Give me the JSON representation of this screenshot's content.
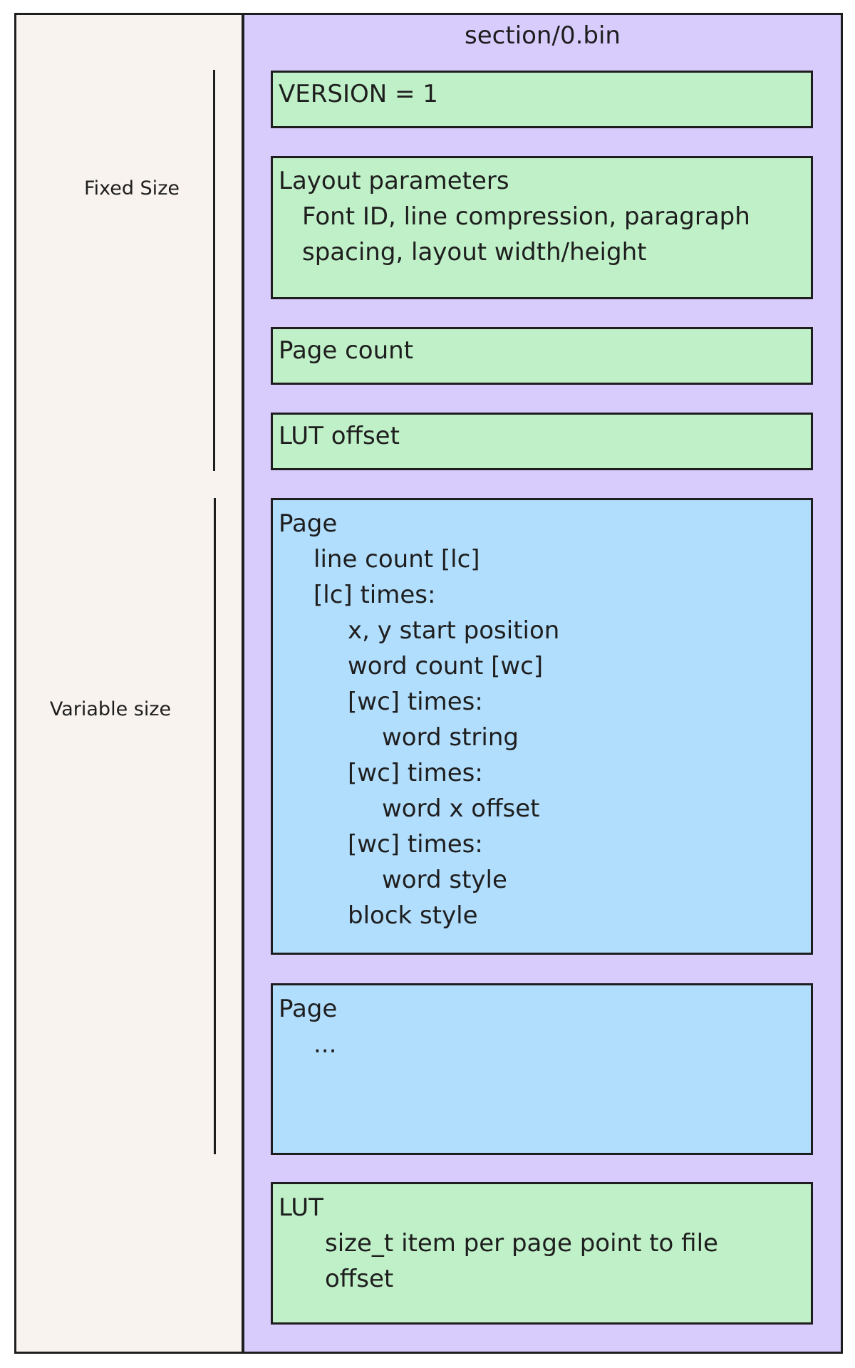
{
  "title": "section/0.bin",
  "side_labels": {
    "fixed": "Fixed Size",
    "variable": "Variable size"
  },
  "blocks": {
    "version": {
      "lines": [
        "VERSION = 1"
      ]
    },
    "layout": {
      "lines": [
        "Layout parameters",
        "Font ID, line compression, paragraph",
        "spacing, layout width/height"
      ]
    },
    "page_count": {
      "lines": [
        "Page count"
      ]
    },
    "lut_offset": {
      "lines": [
        "LUT offset"
      ]
    },
    "page": {
      "lines": [
        "Page",
        "line count [lc]",
        "[lc] times:",
        "x, y start position",
        "word count [wc]",
        "[wc] times:",
        "word string",
        "[wc] times:",
        "word x offset",
        "[wc] times:",
        "word style",
        "block style"
      ]
    },
    "page2": {
      "lines": [
        "Page",
        "..."
      ]
    },
    "lut": {
      "lines": [
        "LUT",
        "size_t item per page point to file",
        "offset"
      ]
    }
  },
  "colors": {
    "fixed_block": "#c0f0c8",
    "page_block": "#b2defe",
    "file_background": "#d8ccfd",
    "side_panel": "#f8f3ef"
  }
}
